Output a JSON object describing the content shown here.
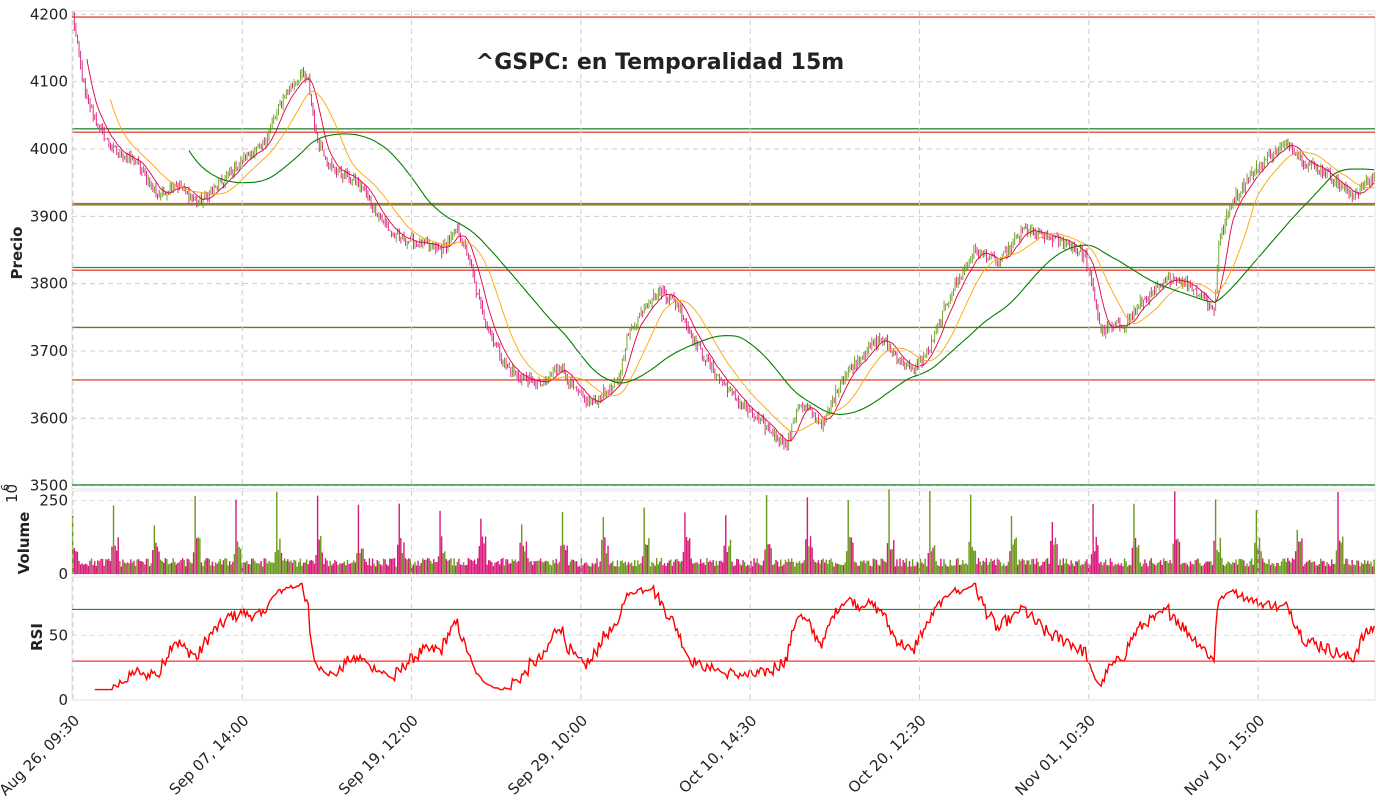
{
  "chart_data": [
    {
      "type": "candlestick",
      "panel": "price",
      "title": "^GSPC: en Temporalidad 15m",
      "ylabel": "Precio",
      "ylim": [
        3495,
        4205
      ],
      "yticks": [
        3500,
        3600,
        3700,
        3800,
        3900,
        4000,
        4100,
        4200
      ],
      "x_tick_labels": [
        "Aug 26, 09:30",
        "Sep 07, 14:00",
        "Sep 19, 12:00",
        "Sep 29, 10:00",
        "Oct 10, 14:30",
        "Oct 20, 12:30",
        "Nov 01, 10:30",
        "Nov 10, 15:00"
      ],
      "grid": true,
      "colors": {
        "up": "#6b9a1f",
        "down": "#d81b7a",
        "sma_fast": "#e0003c",
        "sma_mid": "#ffa500",
        "sma_slow": "#008000"
      },
      "close_path": [
        [
          0,
          4200
        ],
        [
          3,
          4150
        ],
        [
          8,
          4080
        ],
        [
          15,
          4040
        ],
        [
          25,
          4000
        ],
        [
          40,
          3980
        ],
        [
          55,
          3930
        ],
        [
          65,
          3950
        ],
        [
          80,
          3920
        ],
        [
          95,
          3950
        ],
        [
          110,
          3990
        ],
        [
          120,
          4000
        ],
        [
          135,
          4080
        ],
        [
          145,
          4110
        ],
        [
          150,
          4100
        ],
        [
          155,
          4020
        ],
        [
          165,
          3970
        ],
        [
          175,
          3960
        ],
        [
          185,
          3940
        ],
        [
          195,
          3900
        ],
        [
          205,
          3870
        ],
        [
          220,
          3860
        ],
        [
          235,
          3850
        ],
        [
          245,
          3880
        ],
        [
          252,
          3840
        ],
        [
          258,
          3780
        ],
        [
          265,
          3730
        ],
        [
          275,
          3680
        ],
        [
          285,
          3660
        ],
        [
          300,
          3650
        ],
        [
          310,
          3680
        ],
        [
          320,
          3640
        ],
        [
          330,
          3620
        ],
        [
          340,
          3640
        ],
        [
          347,
          3650
        ],
        [
          353,
          3720
        ],
        [
          365,
          3770
        ],
        [
          375,
          3790
        ],
        [
          385,
          3770
        ],
        [
          395,
          3720
        ],
        [
          405,
          3680
        ],
        [
          415,
          3650
        ],
        [
          430,
          3610
        ],
        [
          445,
          3580
        ],
        [
          455,
          3560
        ],
        [
          462,
          3620
        ],
        [
          470,
          3610
        ],
        [
          478,
          3590
        ],
        [
          490,
          3660
        ],
        [
          505,
          3700
        ],
        [
          515,
          3720
        ],
        [
          525,
          3690
        ],
        [
          535,
          3670
        ],
        [
          545,
          3700
        ],
        [
          560,
          3790
        ],
        [
          575,
          3850
        ],
        [
          590,
          3830
        ],
        [
          605,
          3880
        ],
        [
          620,
          3870
        ],
        [
          635,
          3860
        ],
        [
          645,
          3840
        ],
        [
          650,
          3790
        ],
        [
          655,
          3730
        ],
        [
          670,
          3740
        ],
        [
          680,
          3770
        ],
        [
          690,
          3790
        ],
        [
          700,
          3810
        ],
        [
          710,
          3800
        ],
        [
          720,
          3780
        ],
        [
          727,
          3760
        ],
        [
          730,
          3860
        ],
        [
          738,
          3920
        ],
        [
          750,
          3960
        ],
        [
          762,
          3990
        ],
        [
          775,
          4010
        ],
        [
          785,
          3980
        ],
        [
          795,
          3970
        ],
        [
          805,
          3950
        ],
        [
          815,
          3930
        ],
        [
          825,
          3950
        ],
        [
          830,
          3960
        ]
      ],
      "bars": 830,
      "support_resistance": [
        {
          "y": 4196,
          "color": "#e74c3c"
        },
        {
          "y": 4030,
          "color": "#2e8b3c"
        },
        {
          "y": 4025,
          "color": "#e74c3c"
        },
        {
          "y": 3919,
          "color": "#e74c3c"
        },
        {
          "y": 3917,
          "color": "#6b7a10"
        },
        {
          "y": 3824,
          "color": "#2e8b3c"
        },
        {
          "y": 3820,
          "color": "#e74c3c"
        },
        {
          "y": 3735,
          "color": "#6b7a10"
        },
        {
          "y": 3657,
          "color": "#e74c3c"
        },
        {
          "y": 3501,
          "color": "#2e8b3c"
        }
      ]
    },
    {
      "type": "bar",
      "panel": "volume",
      "ylabel": "Volume",
      "scale_note": "10",
      "scale_exp": "6",
      "ylim": [
        0,
        300
      ],
      "yticks": [
        0,
        250
      ],
      "period_bars": 36,
      "up_color": "#6b9a1f",
      "down_color": "#d81b7a"
    },
    {
      "type": "line",
      "panel": "rsi",
      "ylabel": "RSI",
      "ylim": [
        0,
        95
      ],
      "yticks": [
        0,
        50
      ],
      "overbought": 70,
      "oversold": 30,
      "line_color": "#ff0000",
      "overbought_color": "#008000",
      "oversold_color": "#ff0000"
    }
  ]
}
